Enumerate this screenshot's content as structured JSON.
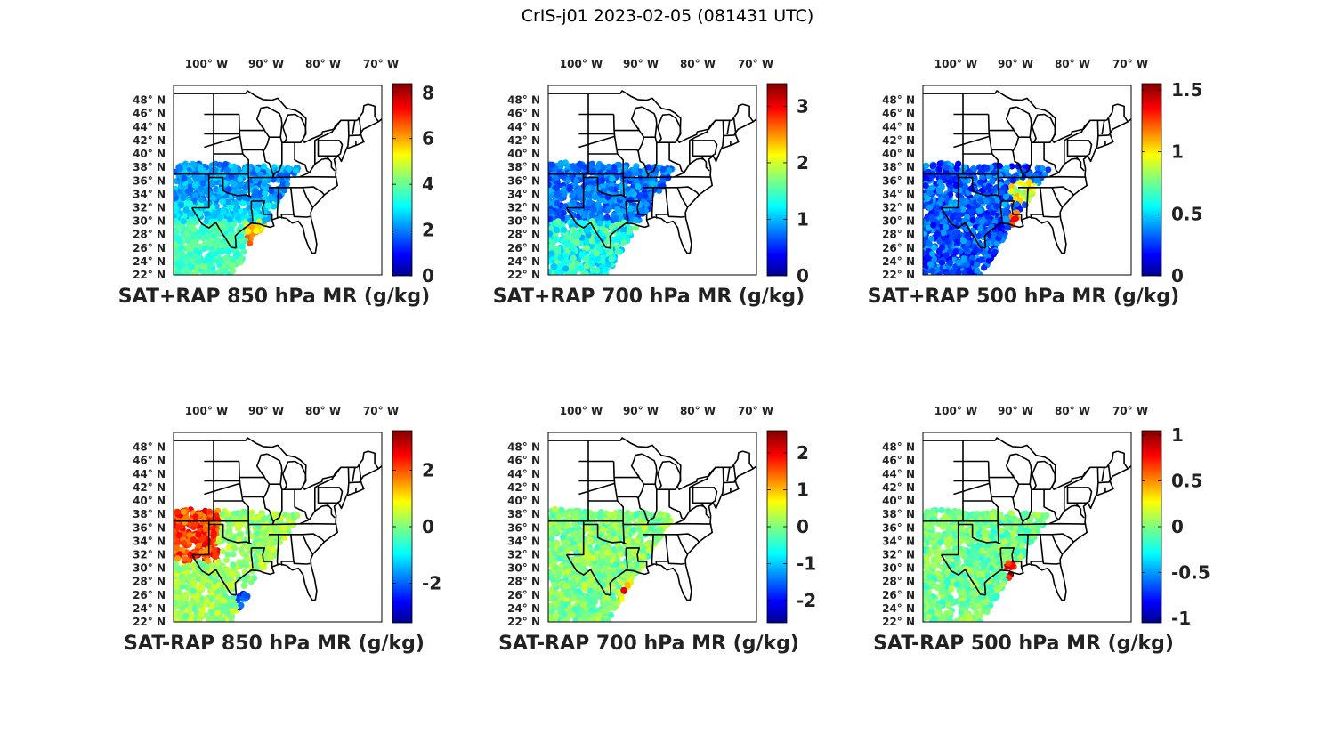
{
  "figure_title": "CrIS-j01 2023-02-05 (081431 UTC)",
  "lon_labels": [
    "100° W",
    "90° W",
    "80° W",
    "70° W"
  ],
  "lat_labels": [
    "48° N",
    "46° N",
    "44° N",
    "42° N",
    "40° N",
    "38° N",
    "36° N",
    "34° N",
    "32° N",
    "30° N",
    "28° N",
    "26° N",
    "24° N",
    "22° N"
  ],
  "panels": [
    {
      "title": "SAT+RAP 850 hPa MR (g/kg)",
      "field": "sum",
      "level": 850,
      "cbar_ticks": [
        "8",
        "6",
        "4",
        "2",
        "0"
      ],
      "cbar_values": [
        8,
        6,
        4,
        2,
        0
      ],
      "cbar_range": [
        0,
        8.4
      ]
    },
    {
      "title": "SAT+RAP 700 hPa MR (g/kg)",
      "field": "sum",
      "level": 700,
      "cbar_ticks": [
        "3",
        "2",
        "1",
        "0"
      ],
      "cbar_values": [
        3,
        2,
        1,
        0
      ],
      "cbar_range": [
        0,
        3.4
      ]
    },
    {
      "title": "SAT+RAP 500 hPa MR (g/kg)",
      "field": "sum",
      "level": 500,
      "cbar_ticks": [
        "1.5",
        "1",
        "0.5",
        "0"
      ],
      "cbar_values": [
        1.5,
        1,
        0.5,
        0
      ],
      "cbar_range": [
        0,
        1.55
      ]
    },
    {
      "title": "SAT-RAP 850 hPa MR (g/kg)",
      "field": "diff",
      "level": 850,
      "cbar_ticks": [
        "2",
        "0",
        "-2"
      ],
      "cbar_values": [
        2,
        0,
        -2
      ],
      "cbar_range": [
        -3.4,
        3.4
      ]
    },
    {
      "title": "SAT-RAP 700 hPa MR (g/kg)",
      "field": "diff",
      "level": 700,
      "cbar_ticks": [
        "2",
        "1",
        "0",
        "-1",
        "-2"
      ],
      "cbar_values": [
        2,
        1,
        0,
        -1,
        -2
      ],
      "cbar_range": [
        -2.6,
        2.6
      ]
    },
    {
      "title": "SAT-RAP 500 hPa MR (g/kg)",
      "field": "diff",
      "level": 500,
      "cbar_ticks": [
        "1",
        "0.5",
        "0",
        "-0.5",
        "-1"
      ],
      "cbar_values": [
        1,
        0.5,
        0,
        -0.5,
        -1
      ],
      "cbar_range": [
        -1.05,
        1.05
      ]
    }
  ],
  "colormap": "jet",
  "colors": {
    "map_outline": "#000000",
    "background": "#ffffff"
  }
}
